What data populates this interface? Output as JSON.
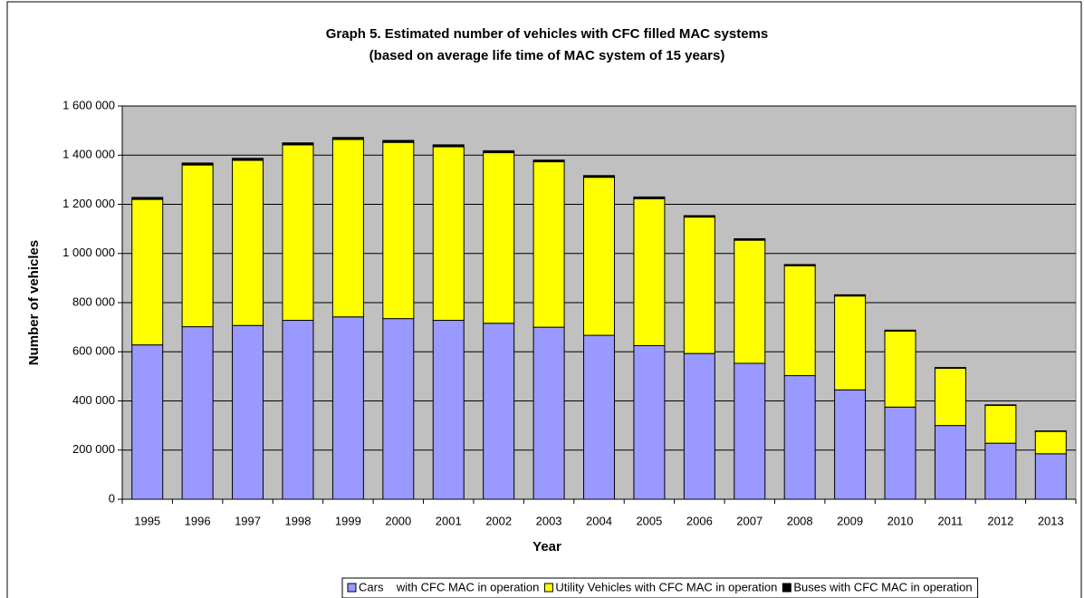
{
  "chart_data": {
    "type": "stacked_bar",
    "title": "Graph 5. Estimated number of vehicles with CFC filled MAC systems",
    "subtitle": "(based on average life time of MAC system of 15 years)",
    "x_label": "Year",
    "y_label": "Number of vehicles",
    "categories": [
      "1995",
      "1996",
      "1997",
      "1998",
      "1999",
      "2000",
      "2001",
      "2002",
      "2003",
      "2004",
      "2005",
      "2006",
      "2007",
      "2008",
      "2009",
      "2010",
      "2011",
      "2012",
      "2013"
    ],
    "series": [
      {
        "name": "Cars    with CFC MAC in operation",
        "color": "#9999ff",
        "values": [
          628000,
          702000,
          707000,
          728000,
          742000,
          735000,
          728000,
          716000,
          700000,
          667000,
          625000,
          593000,
          553000,
          503000,
          445000,
          375000,
          300000,
          228000,
          185000
        ]
      },
      {
        "name": "Utility Vehicles with CFC MAC in operation",
        "color": "#ffff00",
        "values": [
          592000,
          658000,
          672000,
          714000,
          722000,
          717000,
          706000,
          694000,
          673000,
          643000,
          598000,
          555000,
          501000,
          447000,
          382000,
          309000,
          233000,
          154000,
          91000
        ]
      },
      {
        "name": "Buses with CFC MAC in operation",
        "color": "#000000",
        "values": [
          8000,
          8000,
          8000,
          8000,
          8000,
          8000,
          8000,
          8000,
          7000,
          7000,
          7000,
          6000,
          6000,
          5000,
          5000,
          4000,
          3000,
          2000,
          2000
        ]
      }
    ],
    "ylim": [
      0,
      1600000
    ],
    "yticks": [
      0,
      {
        "value": 200000,
        "label": "200 000"
      },
      {
        "value": 400000,
        "label": "400 000"
      },
      {
        "value": 600000,
        "label": "600 000"
      },
      {
        "value": 800000,
        "label": "800 000"
      },
      {
        "value": 1000000,
        "label": "1 000 000"
      },
      {
        "value": 1200000,
        "label": "1 200 000"
      },
      {
        "value": 1400000,
        "label": "1 400 000"
      },
      {
        "value": 1600000,
        "label": "1 600 000"
      }
    ],
    "grid": true,
    "legend": "bottom",
    "plot_background": "#c0c0c0"
  }
}
